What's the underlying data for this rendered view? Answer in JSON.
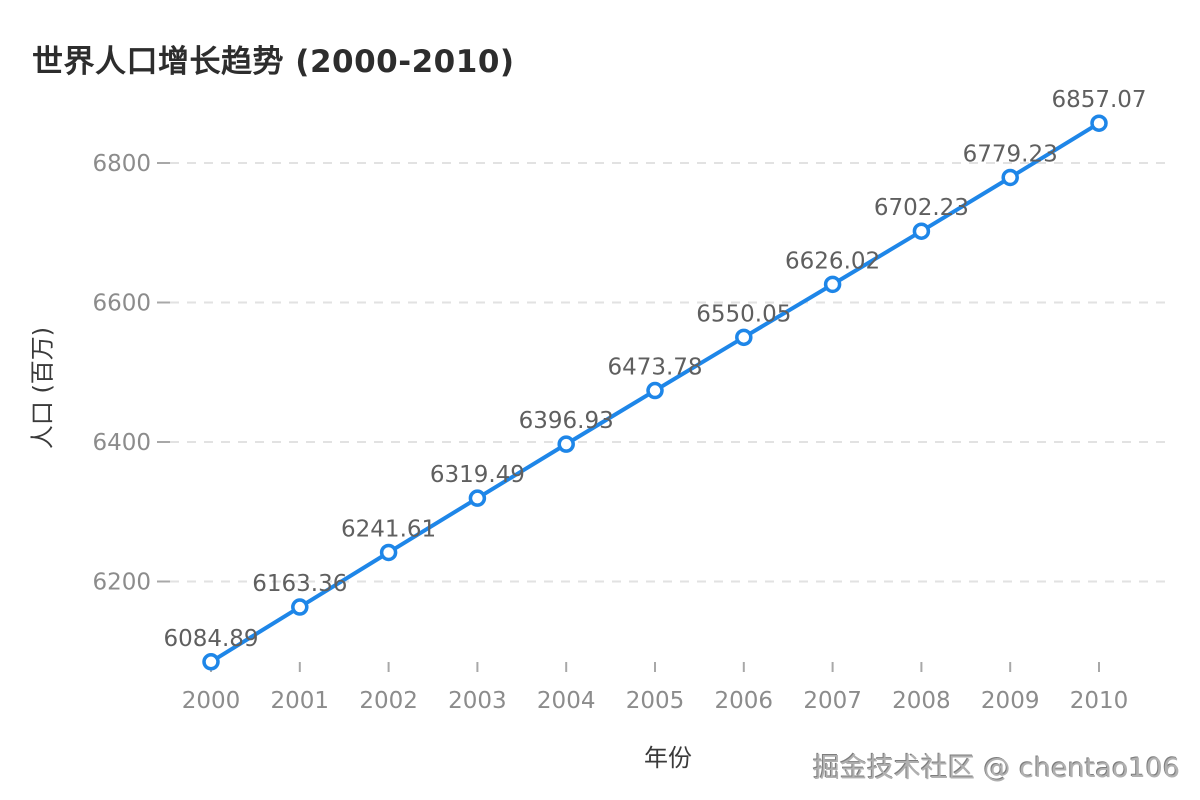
{
  "chart_data": {
    "type": "line",
    "title": "世界人口增长趋势 (2000-2010)",
    "xlabel": "年份",
    "ylabel": "人口 (百万)",
    "x": [
      2000,
      2001,
      2002,
      2003,
      2004,
      2005,
      2006,
      2007,
      2008,
      2009,
      2010
    ],
    "values": [
      6084.89,
      6163.36,
      6241.61,
      6319.49,
      6396.93,
      6473.78,
      6550.05,
      6626.02,
      6702.23,
      6779.23,
      6857.07
    ],
    "data_labels": [
      "6084.89",
      "6163.36",
      "6241.61",
      "6319.49",
      "6396.93",
      "6473.78",
      "6550.05",
      "6626.02",
      "6702.23",
      "6779.23",
      "6857.07"
    ],
    "yticks": [
      6200,
      6400,
      6600,
      6800
    ],
    "ylim": [
      6066,
      6880
    ],
    "grid": "horizontal-dashed",
    "legend": "none",
    "marker": "open-circle",
    "line_color": "#1E86E8",
    "marker_fill": "#ffffff",
    "grid_color": "#e2e2e2",
    "tick_color": "#a8a8a8",
    "tick_label_color": "#8c8c8c",
    "data_label_color": "#5f5f5f",
    "title_color": "#2d2d2d",
    "axis_title_color": "#3a3a3a"
  },
  "watermark": {
    "text": "掘金技术社区 @ chentao106"
  }
}
